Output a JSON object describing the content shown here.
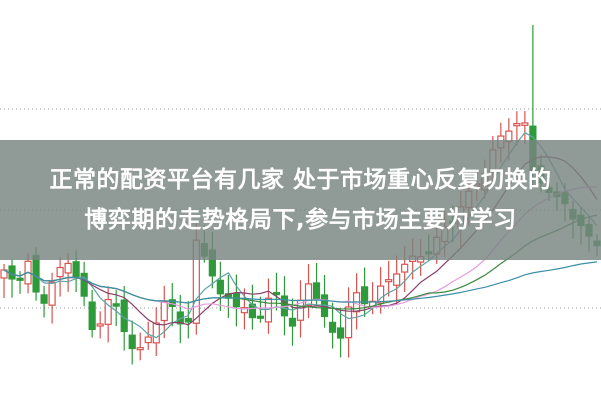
{
  "headline": {
    "line1": "正常的配资平台有几家 处于市场重心反复切换的",
    "line2": "博弈期的走势格局下,参与市场主要为学习"
  },
  "chart": {
    "type": "candlestick",
    "colors": {
      "up": "#d9534f",
      "down": "#2e9a3a",
      "ma5": "#5fa3a8",
      "ma10": "#8a3f6b",
      "ma20": "#e79be0",
      "ma30": "#3d8a3d",
      "ma60": "#3c8fa8",
      "grid": "#999999"
    }
  }
}
